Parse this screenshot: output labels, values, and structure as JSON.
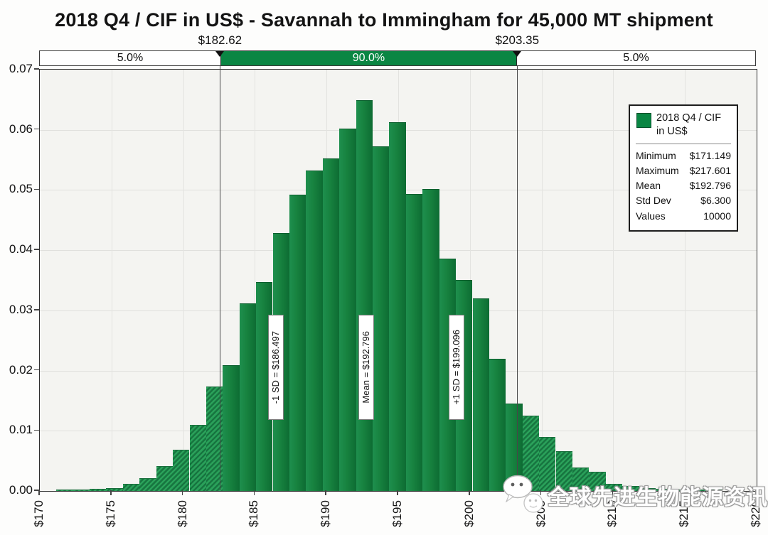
{
  "title": "2018 Q4 / CIF in US$ - Savannah to Immingham for 45,000 MT shipment",
  "band": {
    "left_pct": "5.0%",
    "mid_pct": "90.0%",
    "right_pct": "5.0%",
    "left_value": "$182.62",
    "right_value": "$203.35"
  },
  "legend": {
    "series_label": "2018 Q4 / CIF in US$",
    "rows": [
      {
        "label": "Minimum",
        "value": "$171.149"
      },
      {
        "label": "Maximum",
        "value": "$217.601"
      },
      {
        "label": "Mean",
        "value": "$192.796"
      },
      {
        "label": "Std Dev",
        "value": "$6.300"
      },
      {
        "label": "Values",
        "value": "10000"
      }
    ]
  },
  "watermark": {
    "text": "全球先进生物能源资讯",
    "icon": "wechat-icon"
  },
  "colors": {
    "band_green": "#0a8643",
    "bar_solid": "#15803f",
    "bar_solid_dark": "#0d6c33",
    "bar_hatch_light": "#2aa15a",
    "bar_hatch_dark": "#177540",
    "plot_bg": "#f4f4f1",
    "grid": "#e0e0dd"
  },
  "chart_data": {
    "type": "bar",
    "subtype": "histogram",
    "title": "2018 Q4 / CIF in US$ - Savannah to Immingham for 45,000 MT shipment",
    "xlim": [
      170,
      220
    ],
    "ylim": [
      0,
      0.07
    ],
    "grid": true,
    "legend_position": "top-right",
    "x_tick_values": [
      170,
      175,
      180,
      185,
      190,
      195,
      200,
      205,
      210,
      215,
      220
    ],
    "x_tick_labels": [
      "$170",
      "$175",
      "$180",
      "$185",
      "$190",
      "$195",
      "$200",
      "$205",
      "$210",
      "$215",
      "$220"
    ],
    "y_tick_values": [
      0,
      0.01,
      0.02,
      0.03,
      0.04,
      0.05,
      0.06,
      0.07
    ],
    "y_tick_labels": [
      "0.00",
      "0.01",
      "0.02",
      "0.03",
      "0.04",
      "0.05",
      "0.06",
      "0.07"
    ],
    "bins": {
      "start": 171.149,
      "width": 1.1613,
      "count": 40,
      "solid_range": [
        10,
        27
      ],
      "values": [
        0.0002,
        0.0003,
        0.0004,
        0.0005,
        0.0012,
        0.0021,
        0.0041,
        0.0068,
        0.011,
        0.0174,
        0.0209,
        0.0312,
        0.0347,
        0.0428,
        0.0492,
        0.0532,
        0.0553,
        0.0602,
        0.0649,
        0.0573,
        0.0613,
        0.0494,
        0.0502,
        0.0386,
        0.0351,
        0.032,
        0.022,
        0.0145,
        0.0125,
        0.009,
        0.0066,
        0.0039,
        0.0032,
        0.0012,
        0.0008,
        0.0005,
        0.0004,
        0.0003,
        0.0002,
        0.0002
      ]
    },
    "delimiters": [
      {
        "x": 182.62,
        "label": "$182.62"
      },
      {
        "x": 203.35,
        "label": "$203.35"
      }
    ],
    "band_percentages": [
      "5.0%",
      "90.0%",
      "5.0%"
    ],
    "sd_markers": [
      {
        "x": 186.497,
        "label": "-1 SD = $186.497"
      },
      {
        "x": 192.796,
        "label": "Mean = $192.796"
      },
      {
        "x": 199.096,
        "label": "+1 SD = $199.096"
      }
    ],
    "stats": {
      "minimum": "$171.149",
      "maximum": "$217.601",
      "mean": "$192.796",
      "std_dev": "$6.300",
      "values": "10000"
    }
  }
}
